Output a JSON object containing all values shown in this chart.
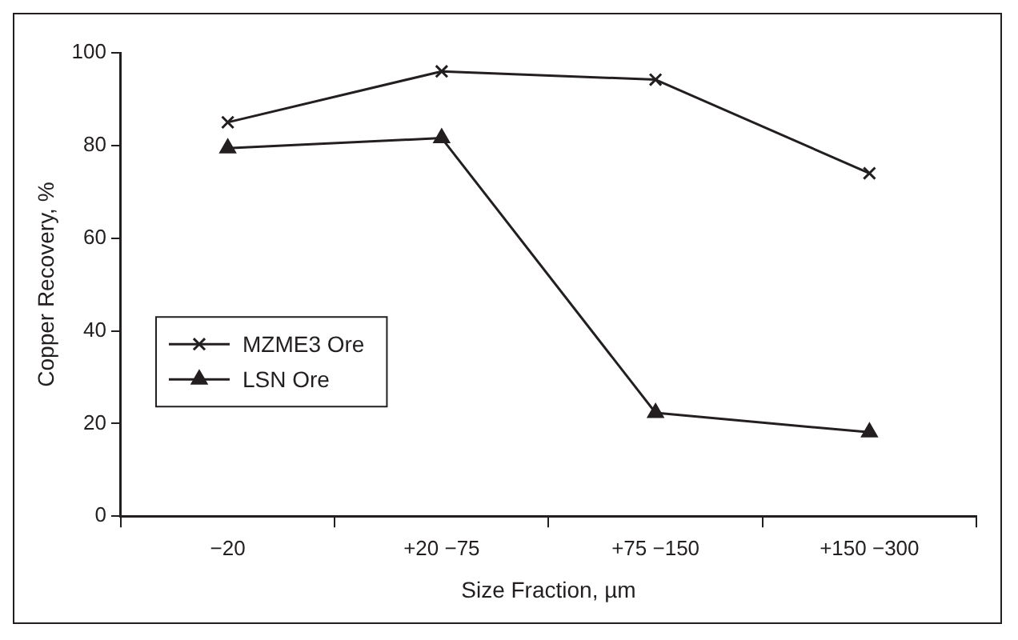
{
  "chart_data": {
    "type": "line",
    "xlabel": "Size Fraction, µm",
    "ylabel": "Copper Recovery, %",
    "categories": [
      "−20",
      "+20 −75",
      "+75 −150",
      "+150 −300"
    ],
    "series": [
      {
        "name": "MZME3 Ore",
        "color": "#231f20",
        "marker": "cross",
        "values": [
          85,
          96,
          94.2,
          74
        ]
      },
      {
        "name": "LSN Ore",
        "color": "#231f20",
        "marker": "triangle",
        "values": [
          79.4,
          81.6,
          22.3,
          18.1
        ]
      }
    ],
    "ylim": [
      0,
      100
    ],
    "yticks": [
      0,
      20,
      40,
      60,
      80,
      100
    ],
    "grid": false,
    "legend": "left",
    "line_style": "solid"
  }
}
